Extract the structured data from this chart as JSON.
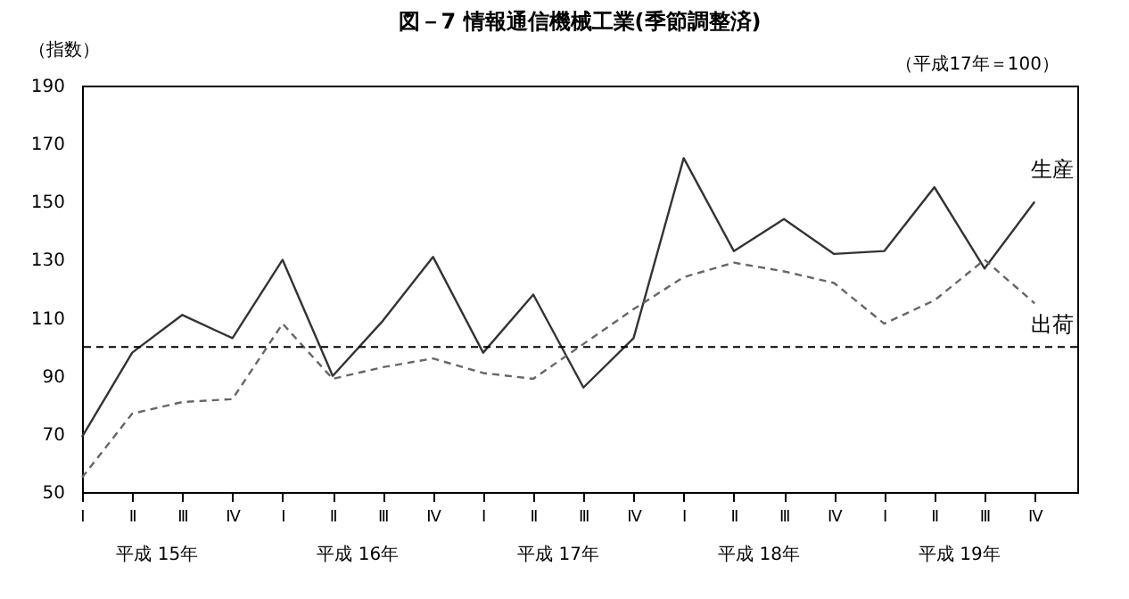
{
  "chart_data": {
    "type": "line",
    "title": "図－7 情報通信機械工業(季節調整済)",
    "subtitle": "（平成17年＝100）",
    "ylabel": "（指数）",
    "categories": [
      "Ⅰ",
      "Ⅱ",
      "Ⅲ",
      "Ⅳ",
      "Ⅰ",
      "Ⅱ",
      "Ⅲ",
      "Ⅳ",
      "Ⅰ",
      "Ⅱ",
      "Ⅲ",
      "Ⅳ",
      "Ⅰ",
      "Ⅱ",
      "Ⅲ",
      "Ⅳ",
      "Ⅰ",
      "Ⅱ",
      "Ⅲ",
      "Ⅳ"
    ],
    "series": [
      {
        "name": "生産",
        "color": "#333333",
        "line_style": "solid",
        "values": [
          69,
          98,
          111,
          103,
          130,
          90,
          109,
          131,
          98,
          118,
          86,
          103,
          165,
          133,
          144,
          132,
          133,
          155,
          127,
          150
        ]
      },
      {
        "name": "出荷",
        "color": "#666666",
        "line_style": "dashed",
        "values": [
          55,
          77,
          81,
          82,
          108,
          89,
          93,
          96,
          91,
          89,
          101,
          113,
          124,
          129,
          126,
          122,
          108,
          116,
          130,
          115
        ]
      }
    ],
    "ylim": [
      50,
      190
    ],
    "yticks": [
      50,
      70,
      90,
      110,
      130,
      150,
      170,
      190
    ],
    "ref_lines": [
      {
        "axis": "y",
        "value": 100,
        "color": "#000000",
        "line_style": "dashed"
      }
    ],
    "annotations": [
      "平成 15年",
      "平成 16年",
      "平成 17年",
      "平成 18年",
      "平成 19年"
    ],
    "grid": false,
    "legend": false,
    "marker": "none"
  }
}
